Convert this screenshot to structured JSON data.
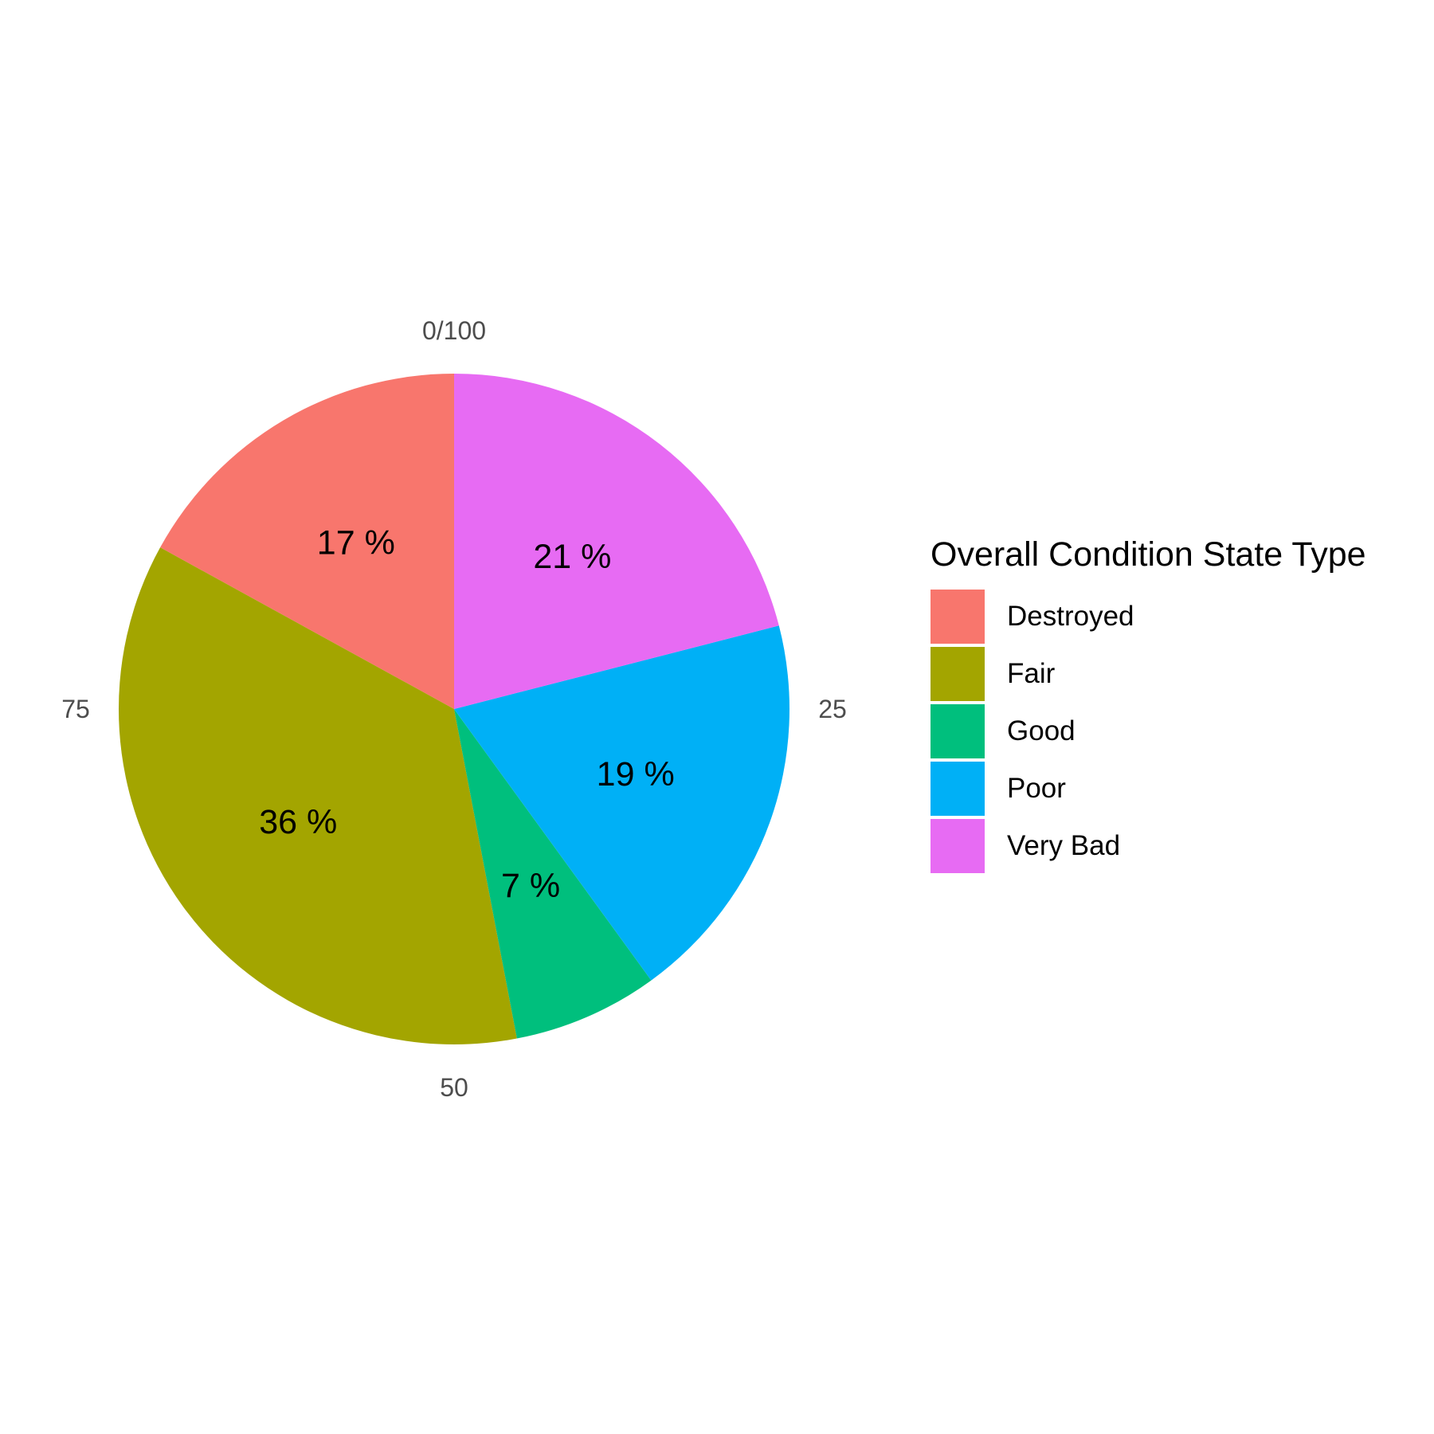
{
  "chart_data": {
    "type": "pie",
    "categories": [
      "Destroyed",
      "Fair",
      "Good",
      "Poor",
      "Very Bad"
    ],
    "values": [
      17,
      36,
      7,
      19,
      21
    ],
    "slice_labels": [
      "17 %",
      "36 %",
      "7 %",
      "19 %",
      "21 %"
    ],
    "colors": [
      "#F8766D",
      "#A3A500",
      "#00BF7D",
      "#00B0F6",
      "#E76BF3"
    ],
    "direction": "counter-clockwise from top",
    "angle_axis_ticks": [
      "0/100",
      "25",
      "50",
      "75"
    ],
    "legend": {
      "title": "Overall Condition State Type",
      "placement": "right"
    },
    "grid": false
  }
}
